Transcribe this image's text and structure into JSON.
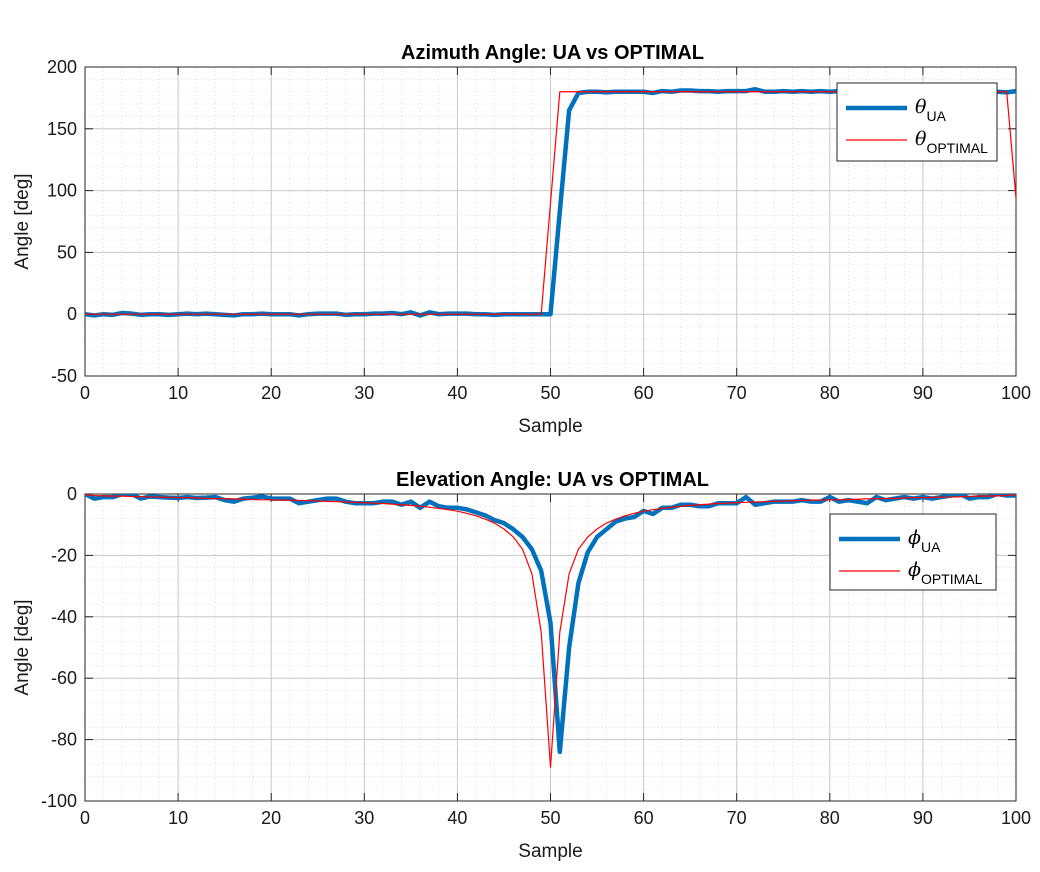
{
  "chart_data": [
    {
      "type": "line",
      "title": "Azimuth Angle: UA vs OPTIMAL",
      "xlabel": "Sample",
      "ylabel": "Angle [deg]",
      "xlim": [
        0,
        100
      ],
      "ylim": [
        -50,
        200
      ],
      "xticks": [
        "0",
        "10",
        "20",
        "30",
        "40",
        "50",
        "60",
        "70",
        "80",
        "90",
        "100"
      ],
      "yticks": [
        "-50",
        "0",
        "50",
        "100",
        "150",
        "200"
      ],
      "grid": true,
      "minor_grid": true,
      "legend_position": "top-right",
      "x": [
        0,
        1,
        2,
        3,
        4,
        5,
        6,
        7,
        8,
        9,
        10,
        11,
        12,
        13,
        14,
        15,
        16,
        17,
        18,
        19,
        20,
        21,
        22,
        23,
        24,
        25,
        26,
        27,
        28,
        29,
        30,
        31,
        32,
        33,
        34,
        35,
        36,
        37,
        38,
        39,
        40,
        41,
        42,
        43,
        44,
        45,
        46,
        47,
        48,
        49,
        50,
        51,
        52,
        53,
        54,
        55,
        56,
        57,
        58,
        59,
        60,
        61,
        62,
        63,
        64,
        65,
        66,
        67,
        68,
        69,
        70,
        71,
        72,
        73,
        74,
        75,
        76,
        77,
        78,
        79,
        80,
        81,
        82,
        83,
        84,
        85,
        86,
        87,
        88,
        89,
        90,
        91,
        92,
        93,
        94,
        95,
        96,
        97,
        98,
        99,
        100
      ],
      "series": [
        {
          "name": "UA",
          "legend_symbol": "θ",
          "legend_sub": "UA",
          "color": "#0072BD",
          "values": [
            0,
            -1,
            0,
            -0.5,
            1,
            0.5,
            -0.5,
            0,
            0,
            -0.5,
            0,
            0.5,
            0,
            0.5,
            0,
            -0.5,
            -1,
            0,
            0,
            0.5,
            0,
            0,
            0,
            -1,
            0,
            0.5,
            0.5,
            0.5,
            -0.5,
            0,
            0,
            0.5,
            0.5,
            1,
            0,
            1.5,
            -1,
            1.5,
            0,
            0.5,
            0.5,
            0.5,
            0,
            0,
            -0.5,
            0,
            0,
            0,
            0,
            0,
            0,
            83,
            165,
            179,
            180,
            180,
            179.5,
            180,
            180,
            180,
            180,
            179,
            180.5,
            180,
            181,
            181,
            180.5,
            180.5,
            180,
            180.5,
            180.5,
            180.5,
            182,
            180,
            180,
            180.5,
            180,
            180.5,
            180,
            180.5,
            180,
            180.5,
            180,
            179.5,
            180,
            180,
            180,
            180,
            179.5,
            180,
            180,
            180,
            180,
            180.5,
            180.5,
            180,
            180.5,
            180,
            180,
            179.5,
            180.5
          ]
        },
        {
          "name": "OPTIMAL",
          "legend_symbol": "θ",
          "legend_sub": "OPTIMAL",
          "color": "#FF0000",
          "values": [
            0,
            0,
            0,
            0,
            0,
            0,
            0,
            0,
            0,
            0,
            0,
            0,
            0,
            0,
            0,
            0,
            0,
            0,
            0,
            0,
            0,
            0,
            0,
            0,
            0,
            0,
            0,
            0,
            0,
            0,
            0,
            0,
            0,
            0,
            0,
            0,
            0,
            0,
            0,
            0,
            0,
            0,
            0,
            0,
            0,
            0,
            0,
            0,
            0,
            0,
            90,
            180,
            180,
            180,
            180,
            180,
            180,
            180,
            180,
            180,
            180,
            180,
            180,
            180,
            180,
            180,
            180,
            180,
            180,
            180,
            180,
            180,
            180,
            180,
            180,
            180,
            180,
            180,
            180,
            180,
            180,
            180,
            180,
            180,
            180,
            180,
            180,
            180,
            180,
            180,
            180,
            180,
            180,
            180,
            180,
            180,
            180,
            180,
            180,
            180,
            94
          ]
        }
      ]
    },
    {
      "type": "line",
      "title": "Elevation Angle: UA vs OPTIMAL",
      "xlabel": "Sample",
      "ylabel": "Angle [deg]",
      "xlim": [
        0,
        100
      ],
      "ylim": [
        -100,
        0
      ],
      "xticks": [
        "0",
        "10",
        "20",
        "30",
        "40",
        "50",
        "60",
        "70",
        "80",
        "90",
        "100"
      ],
      "yticks": [
        "-100",
        "-80",
        "-60",
        "-40",
        "-20",
        "0"
      ],
      "grid": true,
      "minor_grid": true,
      "legend_position": "upper-right",
      "x": [
        0,
        1,
        2,
        3,
        4,
        5,
        6,
        7,
        8,
        9,
        10,
        11,
        12,
        13,
        14,
        15,
        16,
        17,
        18,
        19,
        20,
        21,
        22,
        23,
        24,
        25,
        26,
        27,
        28,
        29,
        30,
        31,
        32,
        33,
        34,
        35,
        36,
        37,
        38,
        39,
        40,
        41,
        42,
        43,
        44,
        45,
        46,
        47,
        48,
        49,
        50,
        51,
        52,
        53,
        54,
        55,
        56,
        57,
        58,
        59,
        60,
        61,
        62,
        63,
        64,
        65,
        66,
        67,
        68,
        69,
        70,
        71,
        72,
        73,
        74,
        75,
        76,
        77,
        78,
        79,
        80,
        81,
        82,
        83,
        84,
        85,
        86,
        87,
        88,
        89,
        90,
        91,
        92,
        93,
        94,
        95,
        96,
        97,
        98,
        99,
        100
      ],
      "series": [
        {
          "name": "UA",
          "legend_symbol": "ϕ",
          "legend_sub": "UA",
          "color": "#0072BD",
          "values": [
            0,
            -1.5,
            -1,
            -1,
            0,
            0,
            -1.5,
            -0.8,
            -1,
            -1.2,
            -1.3,
            -1,
            -1.3,
            -1.2,
            -1,
            -2,
            -2.5,
            -1.5,
            -1.2,
            -0.8,
            -1.5,
            -1.5,
            -1.5,
            -3,
            -2.5,
            -2,
            -1.5,
            -1.5,
            -2.5,
            -3,
            -3,
            -3,
            -2.5,
            -2.5,
            -3.5,
            -2.5,
            -4.5,
            -2.5,
            -4,
            -4.5,
            -4.5,
            -5,
            -6,
            -7,
            -8.5,
            -9.5,
            -11.5,
            -14,
            -18,
            -25,
            -42,
            -84,
            -50,
            -29,
            -19,
            -14,
            -11.5,
            -9,
            -8,
            -7.5,
            -5.5,
            -6.5,
            -4.5,
            -4.5,
            -3.5,
            -3.5,
            -4,
            -4,
            -3,
            -3,
            -3,
            -1,
            -3.5,
            -3,
            -2.5,
            -2.5,
            -2.5,
            -2,
            -2.5,
            -2.5,
            -1,
            -2.5,
            -2,
            -2.5,
            -3,
            -1,
            -2,
            -1.5,
            -1,
            -1.5,
            -1,
            -1.5,
            -1,
            -0.5,
            0,
            -1.5,
            -1,
            -1,
            0,
            -0.5,
            -0.5
          ]
        },
        {
          "name": "OPTIMAL",
          "legend_symbol": "ϕ",
          "legend_sub": "OPTIMAL",
          "color": "#FF0000",
          "values": [
            -0.2,
            -0.5,
            -0.6,
            -0.7,
            -0.7,
            -0.8,
            -0.9,
            -1.0,
            -1.0,
            -1.1,
            -1.2,
            -1.2,
            -1.3,
            -1.4,
            -1.5,
            -1.5,
            -1.6,
            -1.7,
            -1.8,
            -1.9,
            -1.9,
            -2.0,
            -2.0,
            -2.1,
            -2.2,
            -2.3,
            -2.4,
            -2.5,
            -2.6,
            -2.7,
            -2.8,
            -3.0,
            -3.1,
            -3.3,
            -3.5,
            -3.7,
            -4.0,
            -4.3,
            -4.7,
            -5.1,
            -5.6,
            -6.3,
            -7.1,
            -8.2,
            -9.5,
            -11.4,
            -14.0,
            -18.0,
            -26.0,
            -45.0,
            -89.0,
            -45.0,
            -26.0,
            -18.0,
            -14.0,
            -11.4,
            -9.5,
            -8.2,
            -7.1,
            -6.3,
            -5.6,
            -5.1,
            -4.7,
            -4.3,
            -4.0,
            -3.7,
            -3.5,
            -3.3,
            -3.1,
            -3.0,
            -2.8,
            -2.7,
            -2.6,
            -2.5,
            -2.4,
            -2.3,
            -2.2,
            -2.1,
            -2.0,
            -2.0,
            -1.9,
            -1.9,
            -1.8,
            -1.7,
            -1.6,
            -1.5,
            -1.5,
            -1.4,
            -1.3,
            -1.2,
            -1.2,
            -1.1,
            -1.0,
            -1.0,
            -0.9,
            -0.8,
            -0.7,
            -0.7,
            -0.6,
            -0.5,
            -0.3
          ]
        }
      ]
    }
  ]
}
